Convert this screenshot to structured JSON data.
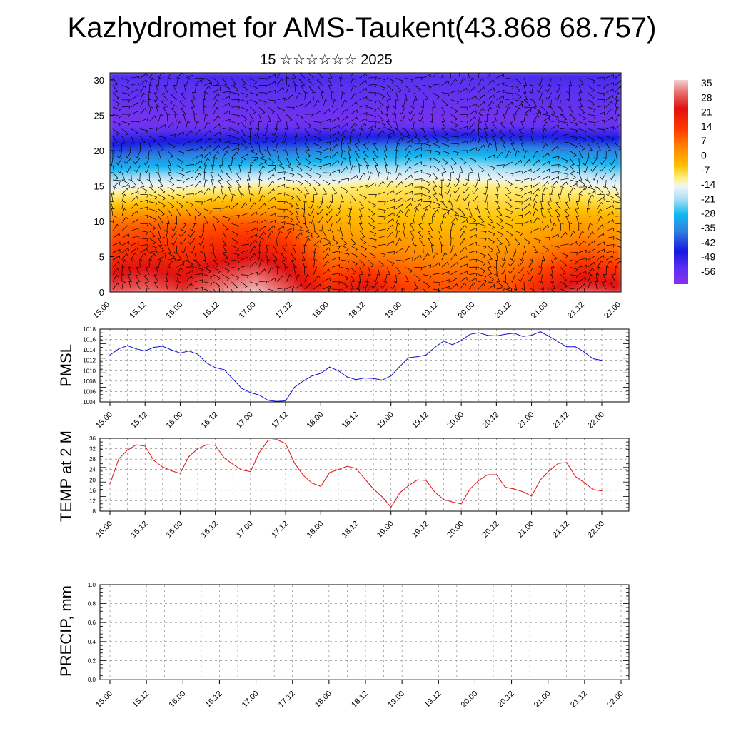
{
  "title": "Kazhydromet for AMS-Taukent(43.868 68.757)",
  "subtitle": "15 ☆☆☆☆☆☆ 2025",
  "colors": {
    "pmsl_line": "#1010d0",
    "temp_line": "#e01010",
    "precip_line": "#20b020",
    "wind_barb": "#000000"
  },
  "chart_data": [
    {
      "id": "cross-section",
      "type": "heatmap",
      "title": "",
      "xlabel": "",
      "ylabel": "",
      "x_tick_labels": [
        "15.00",
        "15.12",
        "16.00",
        "16.12",
        "17.00",
        "17.12",
        "18.00",
        "18.12",
        "19.00",
        "19.12",
        "20.00",
        "20.12",
        "21.00",
        "21.12",
        "22.00"
      ],
      "y_ticks": [
        0,
        5,
        10,
        15,
        20,
        25,
        30
      ],
      "ylim": [
        0,
        31
      ],
      "colorbar": {
        "labels": [
          "35",
          "28",
          "21",
          "14",
          "7",
          "0",
          "-7",
          "-14",
          "-21",
          "-28",
          "-35",
          "-42",
          "-49",
          "-56"
        ],
        "range": [
          -63,
          42
        ]
      },
      "temperature_levels": [
        {
          "level": 0,
          "values": [
            33,
            35,
            31,
            37,
            41,
            33,
            24,
            30,
            22,
            20,
            20,
            20,
            27,
            33,
            30
          ]
        },
        {
          "level": 5,
          "values": [
            23,
            25,
            23,
            26,
            28,
            24,
            16,
            16,
            15,
            14,
            14,
            14,
            17,
            20,
            18
          ]
        },
        {
          "level": 10,
          "values": [
            16,
            17,
            17,
            18,
            18,
            16,
            10,
            8,
            8,
            7,
            7,
            7,
            9,
            11,
            10
          ]
        },
        {
          "level": 15,
          "values": [
            -4,
            -2,
            -2,
            -1,
            1,
            2,
            0,
            2,
            2,
            3,
            2,
            1,
            1,
            -1,
            -3
          ]
        },
        {
          "level": 20,
          "values": [
            -35,
            -32,
            -31,
            -30,
            -30,
            -29,
            -26,
            -23,
            -22,
            -21,
            -21,
            -23,
            -25,
            -27,
            -28
          ]
        },
        {
          "level": 24,
          "values": [
            -58,
            -58,
            -58,
            -58,
            -57,
            -57,
            -57,
            -58,
            -58,
            -58,
            -58,
            -57,
            -56,
            -56,
            -56
          ]
        },
        {
          "level": 31,
          "values": [
            -48,
            -49,
            -48,
            -47,
            -47,
            -47,
            -48,
            -48,
            -49,
            -49,
            -49,
            -48,
            -47,
            -47,
            -47
          ]
        }
      ],
      "wind": "wind barbs drawn over the full domain"
    },
    {
      "id": "pmsl",
      "type": "line",
      "title": "",
      "xlabel": "",
      "ylabel": "PMSL",
      "ylim": [
        1004,
        1018
      ],
      "y_ticks": [
        1004,
        1006,
        1008,
        1010,
        1012,
        1014,
        1016,
        1018
      ],
      "x_tick_labels": [
        "15.00",
        "15.12",
        "16.00",
        "16.12",
        "17.00",
        "17.12",
        "18.00",
        "18.12",
        "19.00",
        "19.12",
        "20.00",
        "20.12",
        "21.00",
        "21.12",
        "22.00"
      ],
      "series": [
        {
          "values": [
            1013,
            1014.2,
            1014.8,
            1014.2,
            1013.8,
            1014.5,
            1014.7,
            1014,
            1013.4,
            1013.8,
            1013.2,
            1011.5,
            1010.6,
            1010.2,
            1008.4,
            1006.6,
            1005.8,
            1005.3,
            1004.3,
            1004.1,
            1004.2,
            1006.8,
            1008,
            1009,
            1009.5,
            1010.7,
            1010,
            1008.8,
            1008.3,
            1008.6,
            1008.5,
            1008.2,
            1009,
            1010.8,
            1012.5,
            1012.7,
            1013,
            1014.5,
            1015.7,
            1015,
            1015.8,
            1017,
            1017.3,
            1016.8,
            1016.7,
            1017,
            1017.2,
            1016.6,
            1016.8,
            1017.5,
            1016.6,
            1015.6,
            1014.6,
            1014.6,
            1013.6,
            1012.3,
            1012
          ]
        }
      ]
    },
    {
      "id": "temp2m",
      "type": "line",
      "title": "",
      "xlabel": "",
      "ylabel": "TEMP at 2 M",
      "ylim": [
        8,
        36
      ],
      "y_ticks": [
        8,
        12,
        16,
        20,
        24,
        28,
        32,
        36
      ],
      "x_tick_labels": [
        "15.00",
        "15.12",
        "16.00",
        "16.12",
        "17.00",
        "17.12",
        "18.00",
        "18.12",
        "19.00",
        "19.12",
        "20.00",
        "20.12",
        "21.00",
        "21.12",
        "22.00"
      ],
      "series": [
        {
          "values": [
            18.5,
            28,
            31.5,
            33.5,
            33,
            27.5,
            25,
            23.5,
            22.5,
            29,
            32,
            33.5,
            33.3,
            28.5,
            26,
            23.8,
            23.2,
            30.5,
            35.2,
            35.5,
            34,
            26.5,
            21.8,
            18.8,
            17.5,
            22.8,
            24,
            25.2,
            24.5,
            20.5,
            16.5,
            13.5,
            9.5,
            15,
            17.8,
            20,
            19.8,
            15.3,
            12.5,
            11.5,
            10.8,
            16.5,
            19.8,
            22,
            22,
            17.2,
            16.5,
            15.5,
            13.8,
            20,
            23.5,
            26.3,
            26.7,
            21.3,
            19,
            16.3,
            15.8
          ]
        }
      ]
    },
    {
      "id": "precip",
      "type": "line",
      "title": "",
      "xlabel": "",
      "ylabel": "PRECIP, mm",
      "ylim": [
        0,
        1
      ],
      "y_ticks": [
        "0.0",
        "0.2",
        "0.4",
        "0.6",
        "0.8",
        "1.0"
      ],
      "x_tick_labels": [
        "15.00",
        "15.12",
        "16.00",
        "16.12",
        "17.00",
        "17.12",
        "18.00",
        "18.12",
        "19.00",
        "19.12",
        "20.00",
        "20.12",
        "21.00",
        "21.12",
        "22.00"
      ],
      "series": [
        {
          "values": [
            0,
            0,
            0,
            0,
            0,
            0,
            0,
            0,
            0,
            0,
            0,
            0,
            0,
            0,
            0,
            0,
            0,
            0,
            0,
            0,
            0,
            0,
            0,
            0,
            0,
            0,
            0,
            0,
            0,
            0,
            0,
            0,
            0,
            0,
            0,
            0,
            0,
            0,
            0,
            0,
            0,
            0,
            0,
            0,
            0,
            0,
            0,
            0,
            0,
            0,
            0,
            0,
            0,
            0,
            0,
            0,
            0
          ]
        }
      ]
    }
  ]
}
